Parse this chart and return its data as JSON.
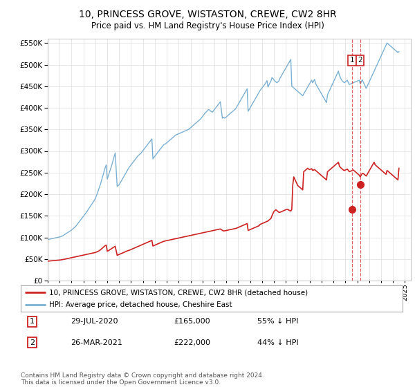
{
  "title": "10, PRINCESS GROVE, WISTASTON, CREWE, CW2 8HR",
  "subtitle": "Price paid vs. HM Land Registry's House Price Index (HPI)",
  "legend_line1": "10, PRINCESS GROVE, WISTASTON, CREWE, CW2 8HR (detached house)",
  "legend_line2": "HPI: Average price, detached house, Cheshire East",
  "footer": "Contains HM Land Registry data © Crown copyright and database right 2024.\nThis data is licensed under the Open Government Licence v3.0.",
  "table": [
    {
      "num": "1",
      "date": "29-JUL-2020",
      "price": "£165,000",
      "pct": "55% ↓ HPI"
    },
    {
      "num": "2",
      "date": "26-MAR-2021",
      "price": "£222,000",
      "pct": "44% ↓ HPI"
    }
  ],
  "sale1_year": 2020.575,
  "sale1_price": 165000,
  "sale2_year": 2021.23,
  "sale2_price": 222000,
  "hpi_color": "#7ab0d4",
  "property_color": "#cc2222",
  "marker_color": "#cc2222",
  "vline_color": "#dd4444",
  "ylim": [
    0,
    560000
  ],
  "yticks": [
    0,
    50000,
    100000,
    150000,
    200000,
    250000,
    300000,
    350000,
    400000,
    450000,
    500000,
    550000
  ],
  "background_color": "#ffffff",
  "grid_color": "#dddddd",
  "table_box_color": "#cc2222",
  "hpi_y": [
    95000,
    95500,
    96000,
    96500,
    97000,
    97500,
    98000,
    98500,
    99000,
    99500,
    100000,
    100500,
    101000,
    101500,
    102500,
    103500,
    105000,
    106500,
    108000,
    109500,
    111000,
    112500,
    114000,
    115500,
    117000,
    119000,
    121000,
    123000,
    125000,
    128000,
    131000,
    134000,
    137000,
    140000,
    143000,
    146000,
    149000,
    152000,
    155000,
    158000,
    161500,
    165000,
    168500,
    172000,
    175500,
    179000,
    182500,
    186000,
    190000,
    196000,
    202000,
    208500,
    215000,
    222000,
    230000,
    238000,
    246000,
    254000,
    262000,
    268000,
    235000,
    242000,
    249000,
    256000,
    263000,
    271000,
    279000,
    287000,
    295500,
    256000,
    218000,
    220000,
    222000,
    226000,
    230000,
    234000,
    238000,
    242000,
    246000,
    250000,
    254000,
    258000,
    262000,
    265000,
    268000,
    271000,
    274000,
    277000,
    280000,
    283000,
    286000,
    289000,
    291000,
    293000,
    295000,
    298000,
    301000,
    304000,
    307000,
    310000,
    313000,
    316000,
    319000,
    322000,
    325000,
    328000,
    282000,
    285000,
    288000,
    291000,
    294000,
    297000,
    300000,
    303000,
    306000,
    309000,
    312000,
    315000,
    316000,
    317000,
    319000,
    321000,
    323000,
    325000,
    327000,
    329000,
    331000,
    333000,
    335000,
    337000,
    338000,
    339000,
    340000,
    341000,
    342000,
    343000,
    344000,
    345000,
    346000,
    347000,
    348000,
    349000,
    350000,
    352000,
    354000,
    356000,
    358000,
    360000,
    362000,
    364000,
    366000,
    368000,
    370000,
    372000,
    374000,
    377000,
    380000,
    383000,
    386000,
    389000,
    391000,
    393000,
    396000,
    395000,
    393000,
    391000,
    390000,
    393000,
    396000,
    399000,
    402000,
    405000,
    408000,
    411000,
    414000,
    395000,
    376000,
    378000,
    376000,
    377000,
    379000,
    381000,
    383000,
    385000,
    387000,
    389000,
    391000,
    393000,
    395000,
    397000,
    400000,
    404000,
    408000,
    412000,
    416000,
    420000,
    424000,
    428000,
    432000,
    436000,
    440000,
    444000,
    392000,
    396000,
    400000,
    404000,
    408000,
    412000,
    416000,
    420000,
    424000,
    428000,
    432000,
    436000,
    440000,
    443000,
    446000,
    449000,
    452000,
    455000,
    459000,
    463000,
    448000,
    453000,
    458000,
    462000,
    470000,
    468000,
    465000,
    462000,
    460000,
    458000,
    460000,
    462000,
    468000,
    472000,
    476000,
    480000,
    484000,
    488000,
    492000,
    496000,
    500000,
    504000,
    508000,
    512000,
    450000,
    448000,
    446000,
    444000,
    442000,
    440000,
    438000,
    436000,
    434000,
    432000,
    430000,
    428000,
    432000,
    436000,
    440000,
    444000,
    448000,
    452000,
    456000,
    460000,
    464000,
    458000,
    462000,
    466000,
    456000,
    452000,
    448000,
    444000,
    440000,
    436000,
    432000,
    428000,
    424000,
    420000,
    416000,
    412000,
    430000,
    435000,
    440000,
    445000,
    450000,
    455000,
    460000,
    465000,
    470000,
    475000,
    480000,
    485000,
    475000,
    470000,
    465000,
    462000,
    460000,
    458000,
    460000,
    462000,
    464000,
    458000,
    454000,
    455000,
    456000,
    457000,
    458000,
    459000,
    460000,
    461000,
    462000,
    463000,
    464000,
    455000,
    460000,
    465000,
    460000,
    455000,
    450000,
    445000,
    450000,
    455000,
    460000,
    465000,
    470000,
    475000,
    480000,
    485000,
    490000,
    495000,
    500000,
    505000,
    510000,
    515000,
    520000,
    525000,
    530000,
    535000,
    540000,
    545000,
    550000,
    548000,
    546000,
    544000,
    542000,
    540000,
    538000,
    536000,
    534000,
    532000,
    530000,
    528000,
    530000
  ],
  "prop_y": [
    45000,
    45200,
    45400,
    45600,
    45800,
    46000,
    46200,
    46400,
    46600,
    46800,
    47000,
    47200,
    47500,
    47800,
    48200,
    48600,
    49000,
    49500,
    50000,
    50500,
    51000,
    51500,
    52000,
    52500,
    53000,
    53500,
    54000,
    54500,
    55000,
    55500,
    56000,
    56500,
    57000,
    57500,
    58000,
    58500,
    59000,
    59500,
    60000,
    60500,
    61000,
    61500,
    62000,
    62500,
    63000,
    63500,
    64000,
    64500,
    65000,
    66000,
    67000,
    68000,
    69500,
    71000,
    73000,
    75000,
    77000,
    79000,
    81000,
    82000,
    68000,
    69000,
    70500,
    72000,
    73500,
    75000,
    76500,
    78000,
    79500,
    69000,
    58500,
    59500,
    60500,
    61500,
    62500,
    63500,
    64500,
    65500,
    66500,
    67500,
    68500,
    69500,
    70000,
    71000,
    72000,
    73000,
    74000,
    75000,
    76000,
    77000,
    78000,
    79000,
    80000,
    81000,
    82000,
    83000,
    84000,
    85000,
    86000,
    87000,
    88000,
    89000,
    90000,
    91000,
    92000,
    93000,
    80000,
    81000,
    82000,
    83000,
    84000,
    85000,
    86000,
    87000,
    88000,
    89000,
    90000,
    91000,
    91500,
    92000,
    92500,
    93000,
    93500,
    94000,
    94500,
    95000,
    95500,
    96000,
    96500,
    97000,
    97500,
    98000,
    98500,
    99000,
    99500,
    100000,
    100500,
    101000,
    101500,
    102000,
    102500,
    103000,
    103500,
    104000,
    104500,
    105000,
    105500,
    106000,
    106500,
    107000,
    107500,
    108000,
    108500,
    109000,
    109500,
    110000,
    110500,
    111000,
    111500,
    112000,
    112500,
    113000,
    113500,
    114000,
    114500,
    115000,
    115500,
    116000,
    116500,
    117000,
    117500,
    118000,
    118500,
    119000,
    119500,
    118000,
    116500,
    115000,
    115000,
    115500,
    116000,
    116500,
    117000,
    117500,
    118000,
    118500,
    119000,
    119500,
    120000,
    120500,
    121000,
    122000,
    123000,
    124000,
    125000,
    126000,
    127000,
    128000,
    129000,
    130000,
    131000,
    132000,
    116000,
    117000,
    118000,
    119000,
    120000,
    121000,
    122000,
    123000,
    124000,
    125000,
    126000,
    127000,
    130000,
    131000,
    132000,
    133000,
    134000,
    135000,
    136000,
    137000,
    138000,
    140000,
    142000,
    144000,
    150000,
    155000,
    160000,
    162000,
    164000,
    162000,
    160000,
    158000,
    158000,
    159000,
    160000,
    161000,
    162000,
    163000,
    164000,
    165000,
    165000,
    163000,
    162000,
    161000,
    165000,
    222000,
    240000,
    235000,
    230000,
    225000,
    220000,
    218000,
    216000,
    214000,
    212000,
    210000,
    252000,
    254000,
    256000,
    258000,
    260000,
    258000,
    257000,
    258000,
    259000,
    255000,
    256000,
    257000,
    255000,
    253000,
    251000,
    249000,
    247000,
    245000,
    243000,
    241000,
    239000,
    237000,
    235000,
    233000,
    252000,
    254000,
    256000,
    258000,
    260000,
    262000,
    264000,
    266000,
    268000,
    270000,
    272000,
    274000,
    265000,
    262000,
    260000,
    258000,
    256000,
    255000,
    256000,
    257000,
    258000,
    255000,
    252000,
    253000,
    254000,
    255000,
    256000,
    254000,
    252000,
    250000,
    248000,
    246000,
    244000,
    240000,
    244000,
    248000,
    248000,
    246000,
    244000,
    242000,
    246000,
    250000,
    254000,
    258000,
    262000,
    266000,
    270000,
    274000,
    268000,
    266000,
    264000,
    262000,
    260000,
    258000,
    256000,
    254000,
    252000,
    250000,
    248000,
    246000,
    255000,
    253000,
    251000,
    249000,
    247000,
    245000,
    243000,
    241000,
    239000,
    237000,
    235000,
    233000,
    260000
  ]
}
